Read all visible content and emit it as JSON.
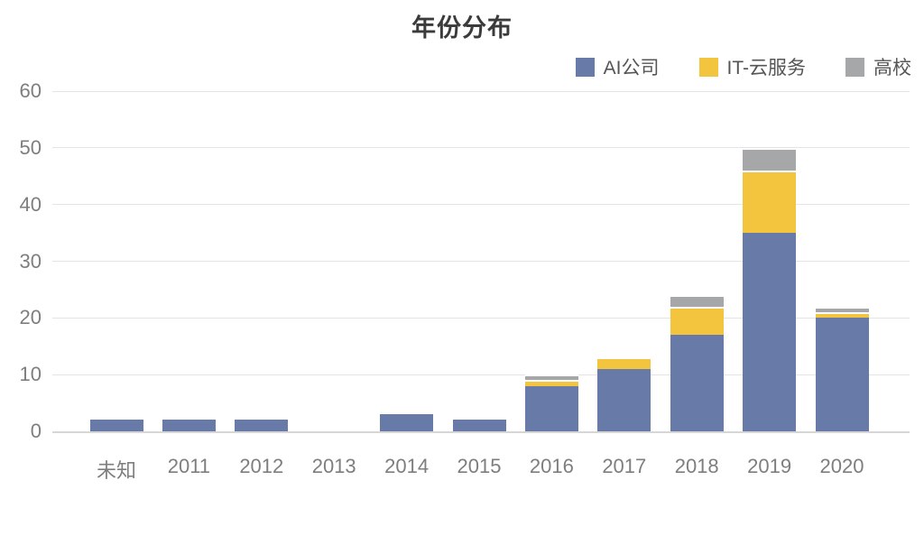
{
  "title": "年份分布",
  "colors": {
    "background": "#ffffff",
    "title_text": "#3b3b3b",
    "axis_label_text": "#7e7e7e",
    "legend_text": "#555555",
    "gridline": "#e4e4e4",
    "axis_line": "#d6d6d6",
    "series_ai": "#687AA8",
    "series_it_cloud": "#F3C43E",
    "series_university": "#A6A7A9"
  },
  "chart_data": {
    "type": "bar",
    "stacked": true,
    "title": "年份分布",
    "xlabel": "",
    "ylabel": "",
    "categories": [
      "未知",
      "2011",
      "2012",
      "2013",
      "2014",
      "2015",
      "2016",
      "2017",
      "2018",
      "2019",
      "2020"
    ],
    "series": [
      {
        "name": "AI公司",
        "color": "#687AA8",
        "values": [
          2,
          2,
          2,
          0,
          3,
          2,
          8,
          11,
          17,
          35,
          20
        ]
      },
      {
        "name": "IT-云服务",
        "color": "#F3C43E",
        "values": [
          0,
          0,
          0,
          0,
          0,
          0,
          1,
          2,
          5,
          11,
          1
        ]
      },
      {
        "name": "高校",
        "color": "#A6A7A9",
        "values": [
          0,
          0,
          0,
          0,
          0,
          0,
          1,
          0,
          2,
          4,
          1
        ]
      }
    ],
    "stack_totals": [
      2,
      2,
      2,
      0,
      3,
      2,
      10,
      13,
      24,
      50,
      22
    ],
    "ylim": [
      0,
      60
    ],
    "yticks": [
      0,
      10,
      20,
      30,
      40,
      50,
      60
    ],
    "grid": true,
    "legend_position": "top-right"
  }
}
